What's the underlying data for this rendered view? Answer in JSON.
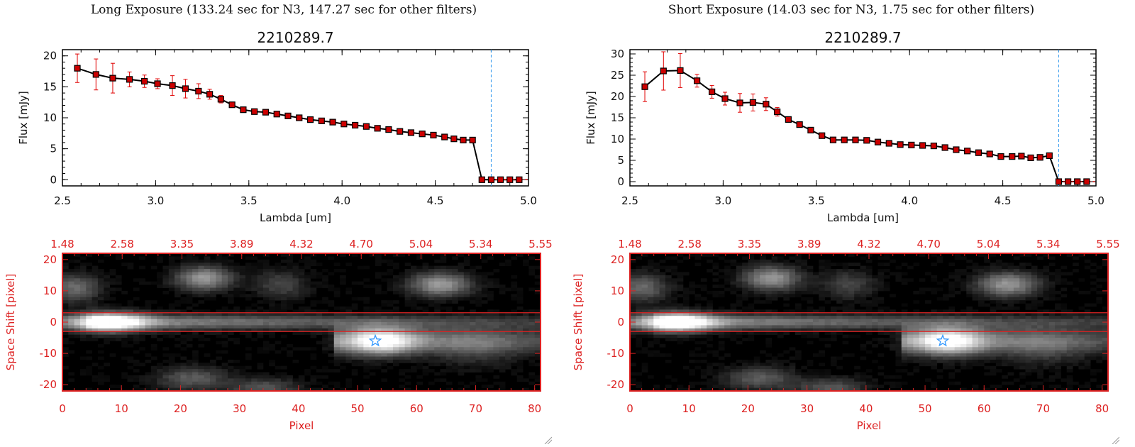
{
  "panels": [
    {
      "heading": "Long Exposure (133.24 sec for N3, 147.27 sec for other filters)",
      "spectrum_title": "2210289.7",
      "image_panel": {
        "ylabel": "Space Shift [pixel]",
        "xlabel": "Pixel",
        "x_ticks": [
          "0",
          "10",
          "20",
          "30",
          "40",
          "50",
          "60",
          "70",
          "80"
        ],
        "y_ticks": [
          "20",
          "10",
          "0",
          "-10",
          "-20"
        ],
        "top_ticks": [
          "1.48",
          "2.58",
          "3.35",
          "3.89",
          "4.32",
          "4.70",
          "5.04",
          "5.34",
          "5.55"
        ]
      }
    },
    {
      "heading": "Short Exposure (14.03 sec for N3, 1.75 sec for other filters)",
      "spectrum_title": "2210289.7",
      "image_panel": {
        "ylabel": "Space Shift [pixel]",
        "xlabel": "Pixel",
        "x_ticks": [
          "0",
          "10",
          "20",
          "30",
          "40",
          "50",
          "60",
          "70",
          "80"
        ],
        "y_ticks": [
          "20",
          "10",
          "0",
          "-10",
          "-20"
        ],
        "top_ticks": [
          "1.48",
          "2.58",
          "3.35",
          "3.89",
          "4.32",
          "4.70",
          "5.04",
          "5.34",
          "5.55"
        ]
      }
    }
  ],
  "colors": {
    "line": "#000000",
    "marker": "#cc0000",
    "error_bar": "#e00000",
    "cutoff_line": "#3399ee",
    "image_frame": "#dd2222",
    "star_marker": "#3399ff"
  },
  "image_features": {
    "extraction_band": [
      -3,
      3
    ],
    "star_marker": {
      "x": 53,
      "y": -6
    }
  },
  "chart_data": [
    {
      "type": "line",
      "title": "2210289.7",
      "xlabel": "Lambda [um]",
      "ylabel": "Flux [mJy]",
      "xlim": [
        2.5,
        5.0
      ],
      "ylim": [
        -1,
        21
      ],
      "x_ticks": [
        "2.5",
        "3.0",
        "3.5",
        "4.0",
        "4.5",
        "5.0"
      ],
      "y_ticks": [
        "0",
        "5",
        "10",
        "15",
        "20"
      ],
      "cutoff_x": 4.8,
      "series": [
        {
          "x": [
            2.58,
            2.68,
            2.77,
            2.86,
            2.94,
            3.01,
            3.09,
            3.16,
            3.23,
            3.29,
            3.35,
            3.41,
            3.47,
            3.53,
            3.59,
            3.65,
            3.71,
            3.77,
            3.83,
            3.89,
            3.95,
            4.01,
            4.07,
            4.13,
            4.19,
            4.25,
            4.31,
            4.37,
            4.43,
            4.49,
            4.55,
            4.6,
            4.65,
            4.7,
            4.75,
            4.8,
            4.85,
            4.9,
            4.95
          ],
          "y": [
            18.0,
            17.0,
            16.4,
            16.2,
            15.9,
            15.5,
            15.2,
            14.7,
            14.3,
            13.8,
            13.0,
            12.1,
            11.3,
            11.0,
            10.9,
            10.6,
            10.3,
            10.0,
            9.7,
            9.5,
            9.3,
            9.0,
            8.8,
            8.6,
            8.3,
            8.1,
            7.8,
            7.6,
            7.4,
            7.2,
            6.9,
            6.6,
            6.4,
            6.4,
            0,
            0,
            0,
            0,
            0
          ],
          "err": [
            2.3,
            2.5,
            2.4,
            1.2,
            1.0,
            0.8,
            1.6,
            1.5,
            1.2,
            0.8,
            0.6,
            0,
            0,
            0,
            0,
            0,
            0,
            0,
            0,
            0,
            0,
            0,
            0,
            0,
            0,
            0,
            0,
            0,
            0,
            0,
            0,
            0,
            0,
            0,
            0,
            0,
            0,
            0,
            0
          ]
        }
      ]
    },
    {
      "type": "line",
      "title": "2210289.7",
      "xlabel": "Lambda [um]",
      "ylabel": "Flux [mJy]",
      "xlim": [
        2.5,
        5.0
      ],
      "ylim": [
        -1,
        31
      ],
      "x_ticks": [
        "2.5",
        "3.0",
        "3.5",
        "4.0",
        "4.5",
        "5.0"
      ],
      "y_ticks": [
        "0",
        "5",
        "10",
        "15",
        "20",
        "25",
        "30"
      ],
      "cutoff_x": 4.8,
      "series": [
        {
          "x": [
            2.58,
            2.68,
            2.77,
            2.86,
            2.94,
            3.01,
            3.09,
            3.16,
            3.23,
            3.29,
            3.35,
            3.41,
            3.47,
            3.53,
            3.59,
            3.65,
            3.71,
            3.77,
            3.83,
            3.89,
            3.95,
            4.01,
            4.07,
            4.13,
            4.19,
            4.25,
            4.31,
            4.37,
            4.43,
            4.49,
            4.55,
            4.6,
            4.65,
            4.7,
            4.75,
            4.8,
            4.85,
            4.9,
            4.95
          ],
          "y": [
            22.3,
            26.0,
            26.1,
            23.7,
            21.1,
            19.5,
            18.5,
            18.6,
            18.2,
            16.4,
            14.6,
            13.4,
            12.1,
            10.8,
            9.8,
            9.8,
            9.8,
            9.7,
            9.3,
            9.0,
            8.7,
            8.6,
            8.5,
            8.4,
            8.0,
            7.5,
            7.2,
            6.8,
            6.5,
            5.9,
            5.9,
            6.0,
            5.6,
            5.7,
            6.1,
            0,
            0,
            0,
            0
          ],
          "err": [
            3.5,
            4.5,
            4.0,
            1.5,
            1.5,
            1.5,
            2.2,
            2.0,
            1.5,
            1.0,
            0.5,
            0,
            0,
            0,
            0,
            0,
            0,
            0,
            0,
            0,
            0,
            0,
            0,
            0,
            0,
            0,
            0,
            0,
            0,
            0,
            0,
            0,
            0,
            0,
            0,
            0,
            0,
            0,
            0
          ]
        }
      ]
    }
  ]
}
